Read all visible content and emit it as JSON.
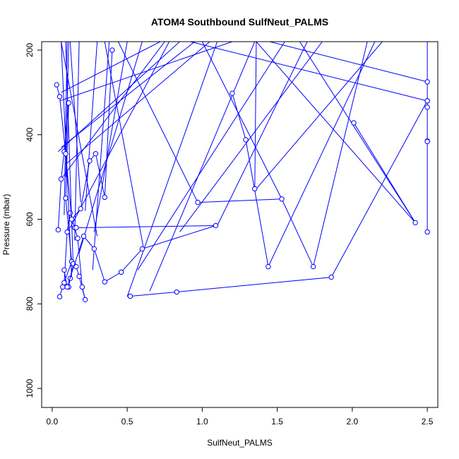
{
  "chart_data": {
    "type": "line",
    "title": "ATOM4 Southbound SulfNeut_PALMS",
    "xlabel": "SulfNeut_PALMS",
    "ylabel": "Pressure (mbar)",
    "xlim": [
      -0.07,
      2.57
    ],
    "ylim": [
      1045,
      180
    ],
    "y_reversed": true,
    "xticks": [
      0.0,
      0.5,
      1.0,
      1.5,
      2.0,
      2.5
    ],
    "xtick_labels": [
      "0.0",
      "0.5",
      "1.0",
      "1.5",
      "2.0",
      "2.5"
    ],
    "yticks": [
      200,
      400,
      600,
      800,
      1000
    ],
    "ytick_labels": [
      "200",
      "400",
      "600",
      "800",
      "1000"
    ],
    "grid": false,
    "legend": "none",
    "series": [
      {
        "color": "#0000ff",
        "x": [
          0.04,
          0.06,
          0.08,
          0.11,
          0.09,
          0.13,
          0.07,
          0.05,
          0.08,
          0.1,
          0.12,
          0.15,
          0.17,
          0.2,
          0.22,
          0.18,
          0.16,
          0.14,
          0.12,
          0.11
        ],
        "y": [
          625,
          505,
          440,
          325,
          550,
          700,
          760,
          783,
          750,
          630,
          585,
          620,
          645,
          760,
          790,
          735,
          712,
          705,
          740,
          760
        ]
      },
      {
        "color": "#0000ff",
        "x": [
          0.03,
          0.05,
          0.09,
          0.13,
          0.19,
          0.25,
          0.29,
          0.35,
          0.4
        ],
        "y": [
          282,
          310,
          445,
          600,
          575,
          462,
          445,
          548,
          200
        ]
      },
      {
        "color": "#0000ff",
        "x": [
          0.08,
          0.1,
          0.21,
          0.28,
          0.35,
          0.46,
          0.6,
          1.09,
          0.16
        ],
        "y": [
          720,
          760,
          640,
          670,
          748,
          725,
          670,
          615,
          620
        ]
      },
      {
        "color": "#0000ff",
        "x": [
          2.5,
          2.5,
          2.5,
          2.5,
          2.5
        ],
        "y": [
          180,
          275,
          320,
          335,
          415
        ]
      },
      {
        "color": "#0000ff",
        "x": [
          2.5,
          2.5
        ],
        "y": [
          630,
          416
        ]
      },
      {
        "color": "#0000ff",
        "x": [
          0.52,
          0.83,
          1.86,
          2.5
        ],
        "y": [
          782,
          772,
          737,
          320
        ]
      },
      {
        "color": "#0000ff",
        "x": [
          1.2,
          1.29,
          1.44
        ],
        "y": [
          302,
          412,
          712
        ]
      },
      {
        "color": "#0000ff",
        "x": [
          2.01,
          2.42,
          1.36,
          1.35
        ],
        "y": [
          372,
          608,
          180,
          528
        ]
      },
      {
        "color": "#0000ff",
        "x": [
          0.97,
          1.53,
          1.74
        ],
        "y": [
          560,
          552,
          712
        ]
      }
    ],
    "through_top": [
      [
        0.06,
        180,
        0.13,
        740
      ],
      [
        0.09,
        180,
        0.14,
        710
      ],
      [
        0.1,
        180,
        0.08,
        590
      ],
      [
        0.11,
        180,
        0.09,
        500
      ],
      [
        0.12,
        180,
        0.19,
        560
      ],
      [
        0.06,
        180,
        0.3,
        640
      ],
      [
        0.18,
        180,
        0.15,
        650
      ],
      [
        0.3,
        180,
        0.22,
        580
      ],
      [
        0.38,
        180,
        0.27,
        720
      ],
      [
        0.5,
        180,
        0.28,
        630
      ],
      [
        0.75,
        180,
        0.07,
        500
      ],
      [
        0.85,
        180,
        0.04,
        440
      ],
      [
        0.95,
        180,
        0.06,
        430
      ],
      [
        1.05,
        180,
        0.09,
        470
      ],
      [
        1.2,
        180,
        0.05,
        320
      ],
      [
        0.6,
        180,
        0.18,
        680
      ],
      [
        0.72,
        180,
        0.06,
        300
      ],
      [
        0.35,
        180,
        0.61,
        670
      ],
      [
        0.44,
        180,
        0.97,
        560
      ],
      [
        1.1,
        180,
        0.5,
        783
      ],
      [
        1.35,
        180,
        0.65,
        770
      ],
      [
        1.55,
        180,
        0.57,
        720
      ],
      [
        1.8,
        180,
        0.85,
        630
      ],
      [
        2.2,
        180,
        1.36,
        528
      ],
      [
        2.15,
        180,
        1.44,
        712
      ],
      [
        2.1,
        180,
        1.74,
        712
      ],
      [
        1.65,
        180,
        2.42,
        608
      ],
      [
        1.45,
        180,
        2.5,
        275
      ],
      [
        0.92,
        180,
        2.5,
        320
      ],
      [
        1.7,
        180,
        1.1,
        615
      ],
      [
        0.78,
        180,
        0.12,
        620
      ],
      [
        1.0,
        180,
        1.53,
        552
      ]
    ]
  }
}
